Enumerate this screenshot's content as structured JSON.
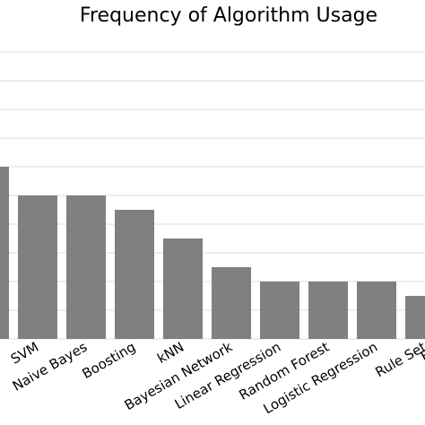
{
  "chart_data": {
    "type": "bar",
    "title": "Frequency of Algorithm Usage",
    "categories": [
      null,
      "SVM",
      "Naive Bayes",
      "Boosting",
      "kNN",
      "Bayesian Network",
      "Linear Regression",
      "Random Forest",
      "Logistic Regression",
      "Rule Set",
      "Ens"
    ],
    "values": [
      12,
      10,
      10,
      9,
      7,
      5,
      4,
      4,
      4,
      3,
      null
    ],
    "color": "#808080",
    "ylim": [
      0,
      20
    ],
    "yticks": [
      0,
      2,
      4,
      6,
      8,
      10,
      12,
      14,
      16,
      18,
      20
    ],
    "grid": true
  }
}
